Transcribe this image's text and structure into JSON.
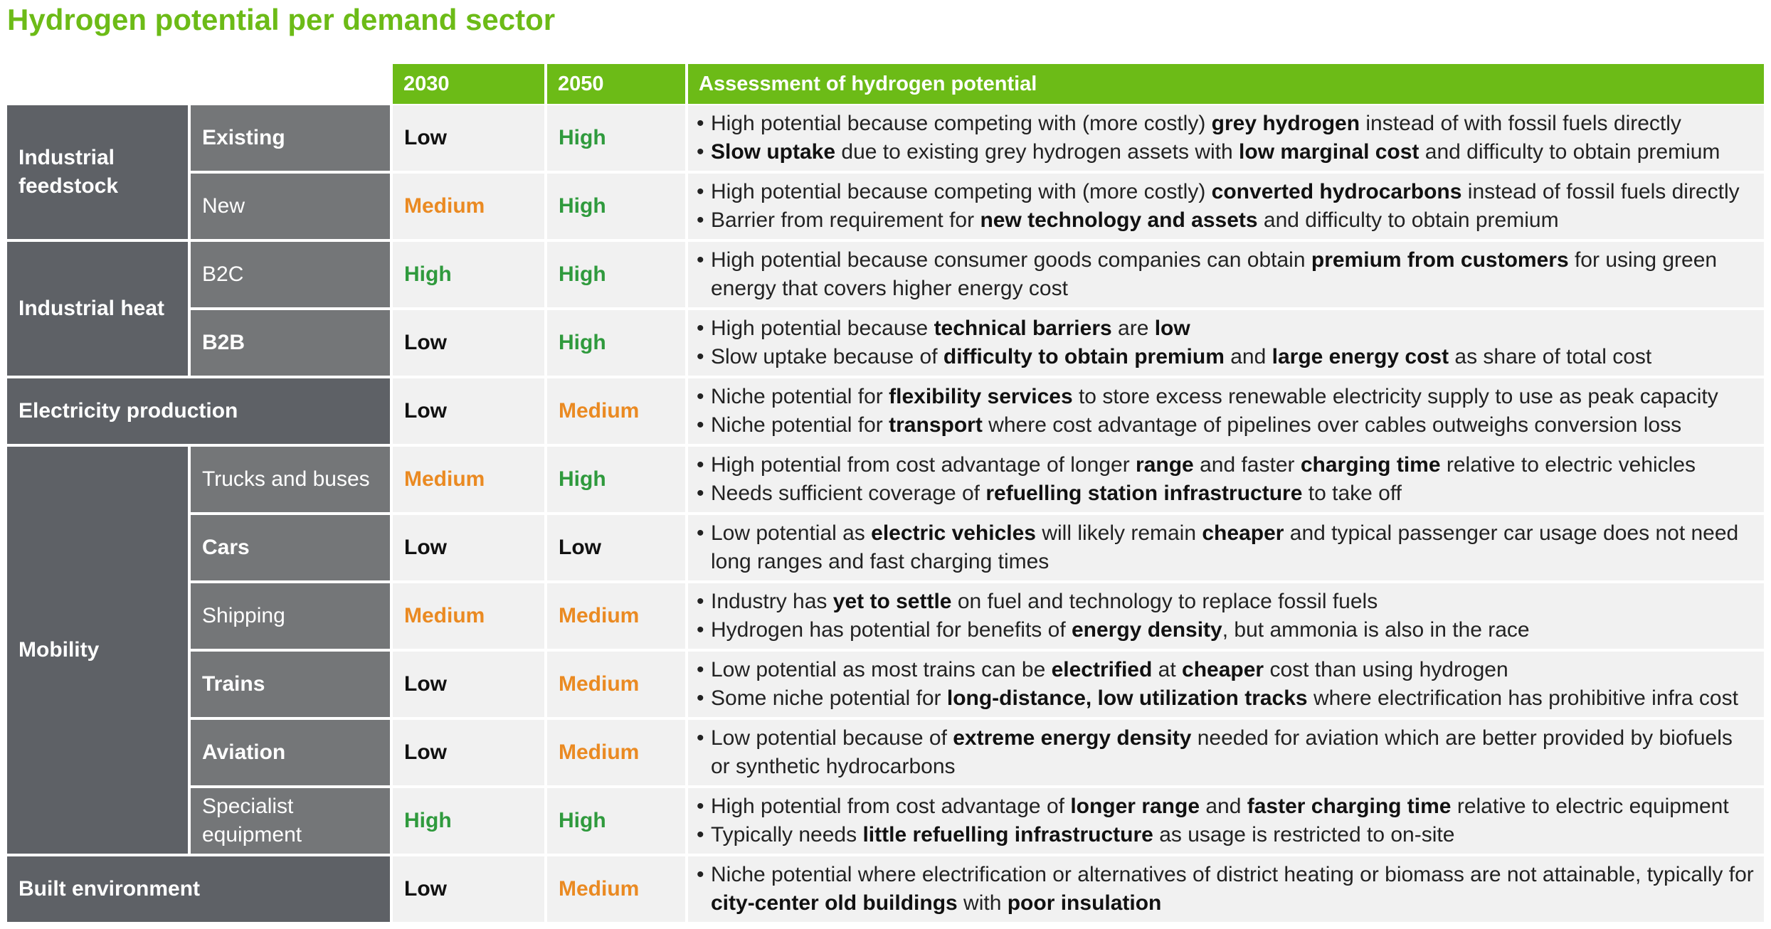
{
  "title": "Hydrogen potential per demand sector",
  "header": {
    "col_2030": "2030",
    "col_2050": "2050",
    "col_assessment": "Assessment of hydrogen potential"
  },
  "groups": {
    "industrial_feedstock": "Industrial feedstock",
    "industrial_heat": "Industrial heat",
    "electricity_production": "Electricity production",
    "mobility": "Mobility",
    "built_environment": "Built environment"
  },
  "colors": {
    "brand_green": "#6cbb17",
    "high": "#2f9a3d",
    "medium": "#ea8a22",
    "low": "#111111",
    "group_bg": "#5e6166",
    "sub_bg": "#747678",
    "cell_bg": "#f1f1f1"
  },
  "rows": [
    {
      "sub": "Existing",
      "v2030": "Low",
      "v2050": "High",
      "bullets": [
        [
          [
            "High potential because competing with (more costly) ",
            false
          ],
          [
            "grey hydrogen",
            true
          ],
          [
            " instead of with fossil fuels directly",
            false
          ]
        ],
        [
          [
            "Slow uptake",
            true
          ],
          [
            " due to existing grey hydrogen assets with ",
            false
          ],
          [
            "low marginal cost",
            true
          ],
          [
            " and difficulty to obtain premium",
            false
          ]
        ]
      ]
    },
    {
      "sub": "New",
      "v2030": "Medium",
      "v2050": "High",
      "bullets": [
        [
          [
            "High potential because competing with (more costly) ",
            false
          ],
          [
            "converted hydrocarbons",
            true
          ],
          [
            " instead of fossil fuels directly",
            false
          ]
        ],
        [
          [
            "Barrier from requirement for ",
            false
          ],
          [
            "new technology and assets",
            true
          ],
          [
            " and difficulty to obtain premium",
            false
          ]
        ]
      ]
    },
    {
      "sub": "B2C",
      "v2030": "High",
      "v2050": "High",
      "bullets": [
        [
          [
            "High potential because consumer goods companies can obtain ",
            false
          ],
          [
            "premium from customers",
            true
          ],
          [
            " for using green energy that covers higher energy cost",
            false
          ]
        ]
      ]
    },
    {
      "sub": "B2B",
      "v2030": "Low",
      "v2050": "High",
      "bullets": [
        [
          [
            "High potential because ",
            false
          ],
          [
            "technical barriers",
            true
          ],
          [
            " are ",
            false
          ],
          [
            "low",
            true
          ]
        ],
        [
          [
            "Slow uptake because of ",
            false
          ],
          [
            "difficulty to obtain premium",
            true
          ],
          [
            " and ",
            false
          ],
          [
            "large energy cost",
            true
          ],
          [
            " as share of total cost",
            false
          ]
        ]
      ]
    },
    {
      "sub": "",
      "v2030": "Low",
      "v2050": "Medium",
      "bullets": [
        [
          [
            "Niche potential for ",
            false
          ],
          [
            "flexibility services",
            true
          ],
          [
            " to store excess renewable electricity supply to use as peak capacity",
            false
          ]
        ],
        [
          [
            "Niche potential for ",
            false
          ],
          [
            "transport",
            true
          ],
          [
            " where cost advantage of pipelines over cables outweighs conversion loss",
            false
          ]
        ]
      ]
    },
    {
      "sub": "Trucks and buses",
      "v2030": "Medium",
      "v2050": "High",
      "bullets": [
        [
          [
            "High potential from cost advantage of longer ",
            false
          ],
          [
            "range",
            true
          ],
          [
            " and faster ",
            false
          ],
          [
            "charging time",
            true
          ],
          [
            " relative to electric vehicles",
            false
          ]
        ],
        [
          [
            "Needs sufficient coverage of ",
            false
          ],
          [
            "refuelling station infrastructure",
            true
          ],
          [
            " to take off",
            false
          ]
        ]
      ]
    },
    {
      "sub": "Cars",
      "v2030": "Low",
      "v2050": "Low",
      "bullets": [
        [
          [
            "Low potential as ",
            false
          ],
          [
            "electric vehicles",
            true
          ],
          [
            " will likely remain ",
            false
          ],
          [
            "cheaper",
            true
          ],
          [
            " and typical passenger car usage does not need long ranges and fast charging times",
            false
          ]
        ]
      ]
    },
    {
      "sub": "Shipping",
      "v2030": "Medium",
      "v2050": "Medium",
      "bullets": [
        [
          [
            "Industry has ",
            false
          ],
          [
            "yet to settle",
            true
          ],
          [
            " on fuel and technology to replace fossil fuels",
            false
          ]
        ],
        [
          [
            "Hydrogen has potential for benefits of ",
            false
          ],
          [
            "energy density",
            true
          ],
          [
            ", but ammonia is also in the race",
            false
          ]
        ]
      ]
    },
    {
      "sub": "Trains",
      "v2030": "Low",
      "v2050": "Medium",
      "bullets": [
        [
          [
            "Low potential as most trains can be ",
            false
          ],
          [
            "electrified",
            true
          ],
          [
            " at ",
            false
          ],
          [
            "cheaper",
            true
          ],
          [
            " cost than using hydrogen",
            false
          ]
        ],
        [
          [
            "Some niche potential for ",
            false
          ],
          [
            "long-distance, low utilization tracks",
            true
          ],
          [
            " where electrification has prohibitive infra cost",
            false
          ]
        ]
      ]
    },
    {
      "sub": "Aviation",
      "v2030": "Low",
      "v2050": "Medium",
      "bullets": [
        [
          [
            "Low potential because of ",
            false
          ],
          [
            "extreme energy density",
            true
          ],
          [
            " needed for aviation which are better provided by biofuels or synthetic hydrocarbons",
            false
          ]
        ]
      ]
    },
    {
      "sub": "Specialist equipment",
      "v2030": "High",
      "v2050": "High",
      "bullets": [
        [
          [
            "High potential from cost advantage of ",
            false
          ],
          [
            "longer range",
            true
          ],
          [
            " and ",
            false
          ],
          [
            "faster charging time",
            true
          ],
          [
            " relative to electric equipment",
            false
          ]
        ],
        [
          [
            "Typically needs ",
            false
          ],
          [
            "little refuelling infrastructure",
            true
          ],
          [
            " as usage is restricted to on-site",
            false
          ]
        ]
      ]
    },
    {
      "sub": "",
      "v2030": "Low",
      "v2050": "Medium",
      "bullets": [
        [
          [
            "Niche potential where electrification or alternatives of district heating or biomass are not attainable, typically for ",
            false
          ],
          [
            "city-center old buildings",
            true
          ],
          [
            " with ",
            false
          ],
          [
            "poor insulation",
            true
          ]
        ]
      ]
    }
  ]
}
